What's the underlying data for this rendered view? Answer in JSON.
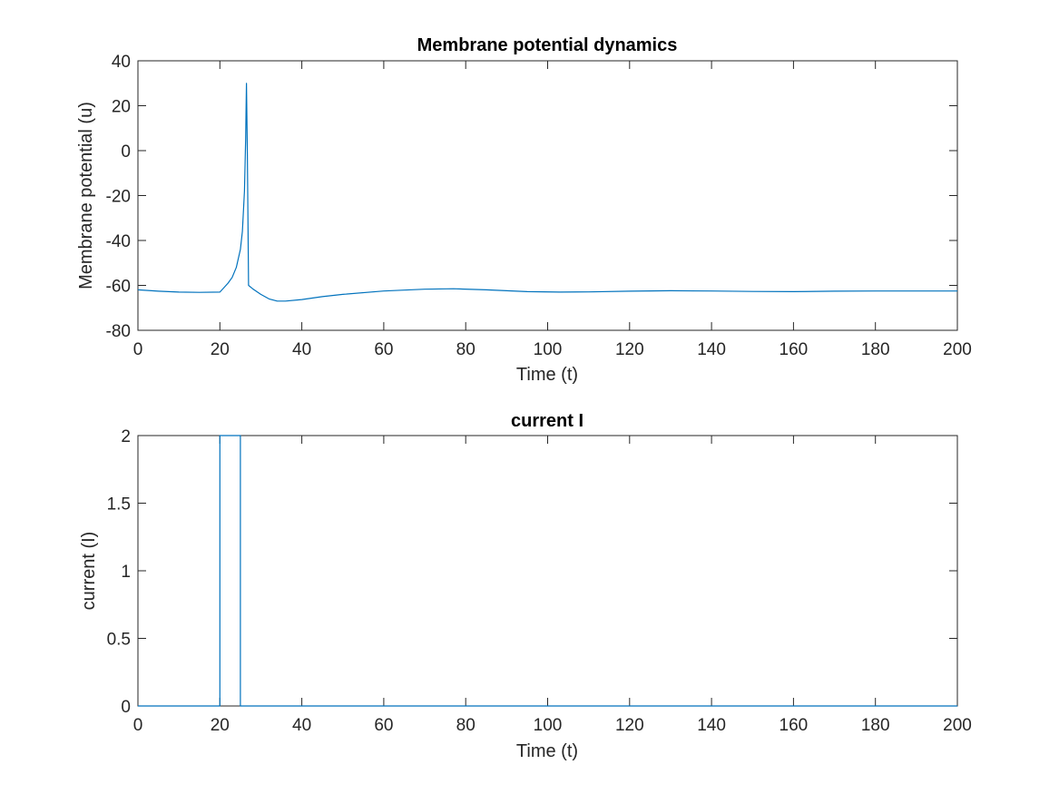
{
  "chart_data": [
    {
      "type": "line",
      "title": "Membrane potential dynamics",
      "xlabel": "Time (t)",
      "ylabel": "Membrane potential (u)",
      "xlim": [
        0,
        200
      ],
      "ylim": [
        -80,
        40
      ],
      "xticks": [
        0,
        20,
        40,
        60,
        80,
        100,
        120,
        140,
        160,
        180,
        200
      ],
      "yticks": [
        -80,
        -60,
        -40,
        -20,
        0,
        20,
        40
      ],
      "grid": false,
      "line_color": "#0072BD",
      "series": [
        {
          "x": [
            0,
            5,
            10,
            15,
            20,
            21,
            22,
            23,
            24,
            25,
            25.5,
            26,
            26.3,
            26.5,
            26.7,
            27,
            28,
            30,
            32,
            34,
            36,
            40,
            45,
            50,
            60,
            70,
            77,
            85,
            95,
            103,
            110,
            120,
            130,
            140,
            150,
            160,
            170,
            180,
            190,
            200
          ],
          "y": [
            -62,
            -62.6,
            -63,
            -63.1,
            -63,
            -61,
            -59,
            -56.5,
            -52,
            -44,
            -36,
            -18,
            5,
            30,
            -2,
            -60,
            -61.5,
            -64,
            -66,
            -67,
            -67,
            -66.3,
            -65,
            -64,
            -62.5,
            -61.7,
            -61.5,
            -62,
            -62.8,
            -63,
            -62.9,
            -62.6,
            -62.4,
            -62.5,
            -62.7,
            -62.8,
            -62.6,
            -62.5,
            -62.5,
            -62.5
          ]
        }
      ]
    },
    {
      "type": "line",
      "title": "current I",
      "xlabel": "Time (t)",
      "ylabel": "current (I)",
      "xlim": [
        0,
        200
      ],
      "ylim": [
        0,
        2
      ],
      "xticks": [
        0,
        20,
        40,
        60,
        80,
        100,
        120,
        140,
        160,
        180,
        200
      ],
      "yticks": [
        0,
        0.5,
        1,
        1.5,
        2
      ],
      "grid": false,
      "line_color": "#0072BD",
      "series": [
        {
          "x": [
            0,
            20,
            20,
            25,
            25,
            200
          ],
          "y": [
            0,
            0,
            2,
            2,
            0,
            0
          ]
        }
      ]
    }
  ]
}
